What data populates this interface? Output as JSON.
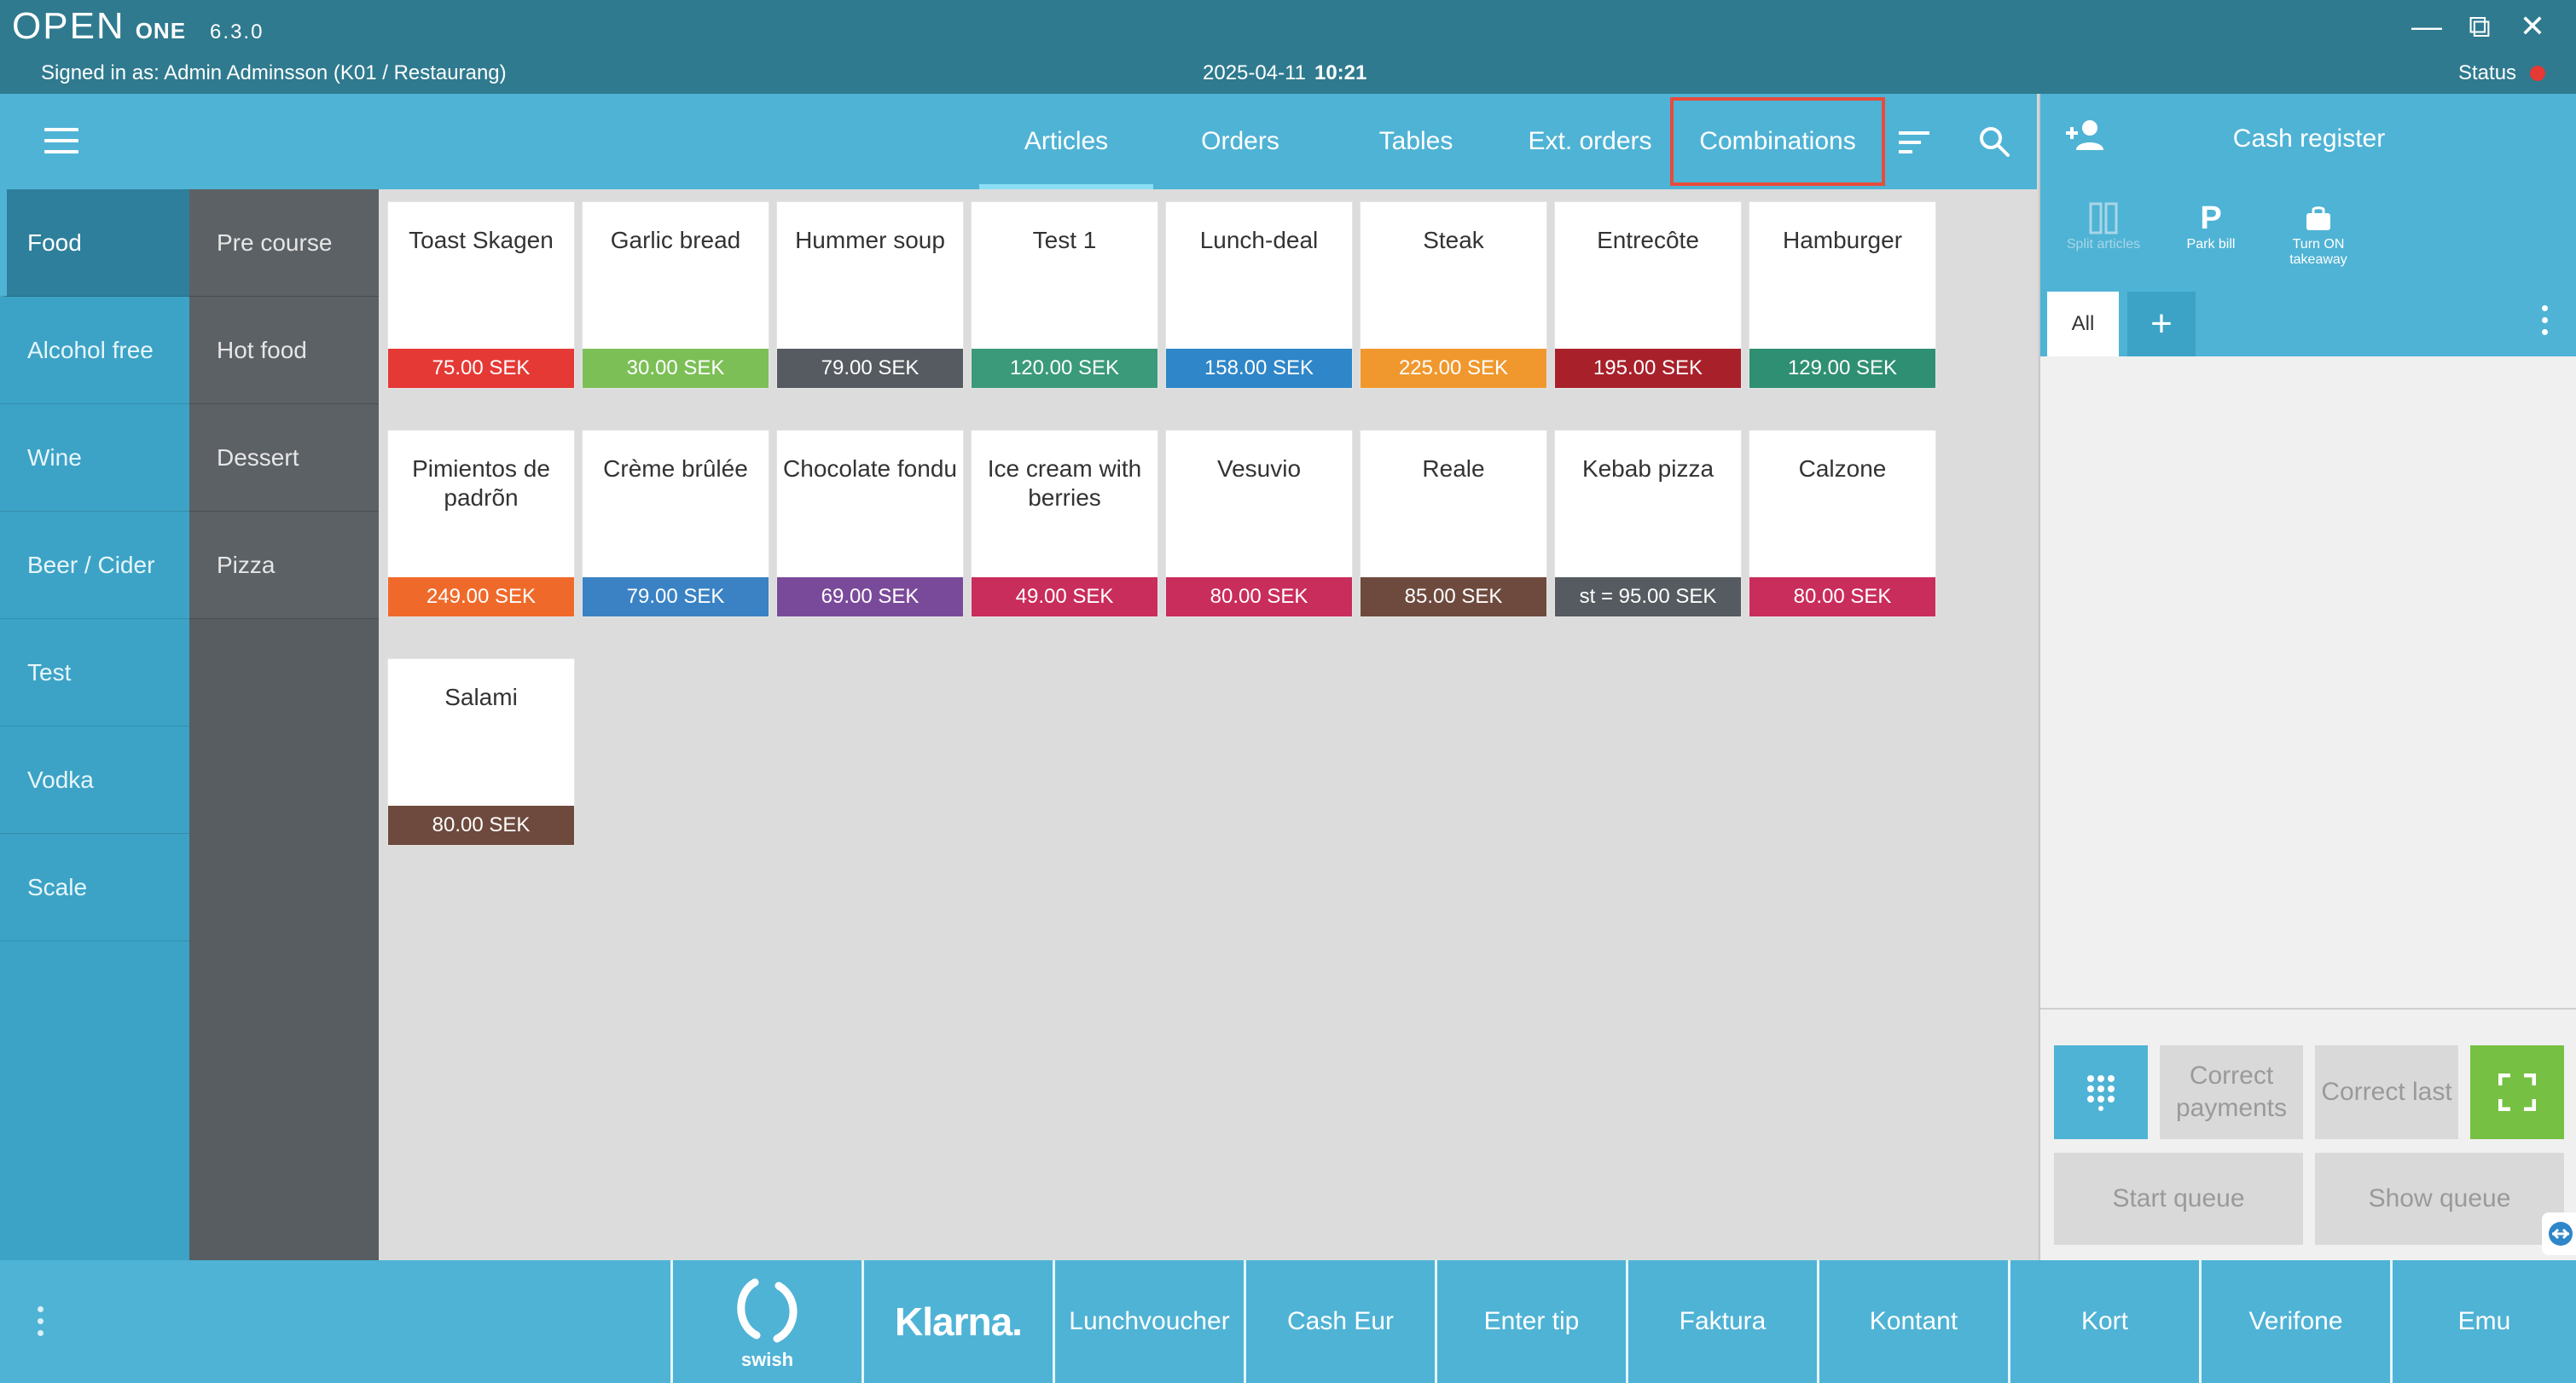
{
  "app": {
    "logo_text": "OPEN",
    "logo_suffix": "ONE",
    "version": "6.3.0",
    "signed_in": "Signed in as: Admin Adminsson (K01 / Restaurang)",
    "date": "2025-04-11",
    "time": "10:21",
    "status_label": "Status",
    "status_color": "#e53935"
  },
  "window_controls": [
    "—",
    "⧉",
    "✕"
  ],
  "nav": {
    "tabs": [
      {
        "label": "Articles",
        "active": true
      },
      {
        "label": "Orders"
      },
      {
        "label": "Tables"
      },
      {
        "label": "Ext. orders"
      },
      {
        "label": "Combinations",
        "highlighted": true
      }
    ]
  },
  "categories": [
    "Food",
    "Alcohol free",
    "Wine",
    "Beer / Cider",
    "Test",
    "Vodka",
    "Scale"
  ],
  "subcategories": [
    "Pre course",
    "Hot food",
    "Dessert",
    "Pizza"
  ],
  "articles": [
    {
      "name": "Toast Skagen",
      "price": "75.00 SEK",
      "color": "#e53935"
    },
    {
      "name": "Garlic bread",
      "price": "30.00 SEK",
      "color": "#7cbf56"
    },
    {
      "name": "Hummer soup",
      "price": "79.00 SEK",
      "color": "#555b60"
    },
    {
      "name": "Test 1",
      "price": "120.00 SEK",
      "color": "#3a9a7a"
    },
    {
      "name": "Lunch-deal",
      "price": "158.00 SEK",
      "color": "#2f86c8"
    },
    {
      "name": "Steak",
      "price": "225.00 SEK",
      "color": "#f0982e"
    },
    {
      "name": "Entrecôte",
      "price": "195.00 SEK",
      "color": "#a8202a"
    },
    {
      "name": "Hamburger",
      "price": "129.00 SEK",
      "color": "#2f8f72"
    },
    {
      "name": "Pimientos de padrõn",
      "price": "249.00 SEK",
      "color": "#ef6a2a"
    },
    {
      "name": "Crème brûlée",
      "price": "79.00 SEK",
      "color": "#3a82c4"
    },
    {
      "name": "Chocolate fondu",
      "price": "69.00 SEK",
      "color": "#7a4a9a"
    },
    {
      "name": "Ice cream with berries",
      "price": "49.00 SEK",
      "color": "#c92d5c"
    },
    {
      "name": "Vesuvio",
      "price": "80.00 SEK",
      "color": "#c92d5c"
    },
    {
      "name": "Reale",
      "price": "85.00 SEK",
      "color": "#6e4a3e"
    },
    {
      "name": "Kebab pizza",
      "price": "st = 95.00 SEK",
      "color": "#555b60"
    },
    {
      "name": "Calzone",
      "price": "80.00 SEK",
      "color": "#c92d5c"
    },
    {
      "name": "Salami",
      "price": "80.00 SEK",
      "color": "#6e4a3e"
    }
  ],
  "register": {
    "title": "Cash register",
    "actions": [
      {
        "label": "Split articles",
        "disabled": true
      },
      {
        "label": "Park bill",
        "icon_text": "P"
      },
      {
        "label": "Turn ON takeaway"
      }
    ],
    "tab_all": "All",
    "tab_add": "+",
    "buttons": {
      "correct_payments": "Correct payments",
      "correct_last": "Correct last",
      "start_queue": "Start queue",
      "show_queue": "Show queue"
    }
  },
  "payments": [
    {
      "label": "swish",
      "kind": "swish"
    },
    {
      "label": "Klarna.",
      "kind": "klarna"
    },
    {
      "label": "Lunchvoucher"
    },
    {
      "label": "Cash Eur"
    },
    {
      "label": "Enter tip"
    },
    {
      "label": "Faktura"
    },
    {
      "label": "Kontant"
    },
    {
      "label": "Kort"
    },
    {
      "label": "Verifone"
    },
    {
      "label": "Emu"
    }
  ]
}
